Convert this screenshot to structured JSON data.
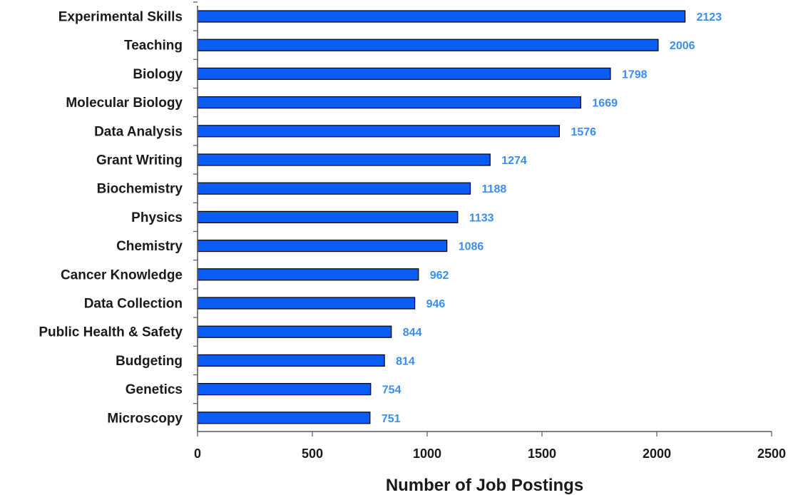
{
  "chart_data": {
    "type": "bar",
    "orientation": "horizontal",
    "categories": [
      "Experimental Skills",
      "Teaching",
      "Biology",
      "Molecular Biology",
      "Data Analysis",
      "Grant Writing",
      "Biochemistry",
      "Physics",
      "Chemistry",
      "Cancer Knowledge",
      "Data Collection",
      "Public Health & Safety",
      "Budgeting",
      "Genetics",
      "Microscopy"
    ],
    "values": [
      2123,
      2006,
      1798,
      1669,
      1576,
      1274,
      1188,
      1133,
      1086,
      962,
      946,
      844,
      814,
      754,
      751
    ],
    "data_labels": [
      "2123",
      "2006",
      "1798",
      "1669",
      "1576",
      "1274",
      "1188",
      "1133",
      "1086",
      "962",
      "946",
      "844",
      "814",
      "754",
      "751"
    ],
    "title": "",
    "xlabel": "Number of Job Postings",
    "ylabel": "",
    "xlim": [
      0,
      2500
    ],
    "xticks": [
      0,
      500,
      1000,
      1500,
      2000,
      2500
    ],
    "xtick_labels": [
      "0",
      "500",
      "1000",
      "1500",
      "2000",
      "2500"
    ],
    "grid": false,
    "legend": "none",
    "colors": {
      "bar_fill": "#0a5cf5",
      "bar_stroke": "#000000",
      "value_label": "#3a8ef0",
      "axis": "#555555"
    }
  }
}
